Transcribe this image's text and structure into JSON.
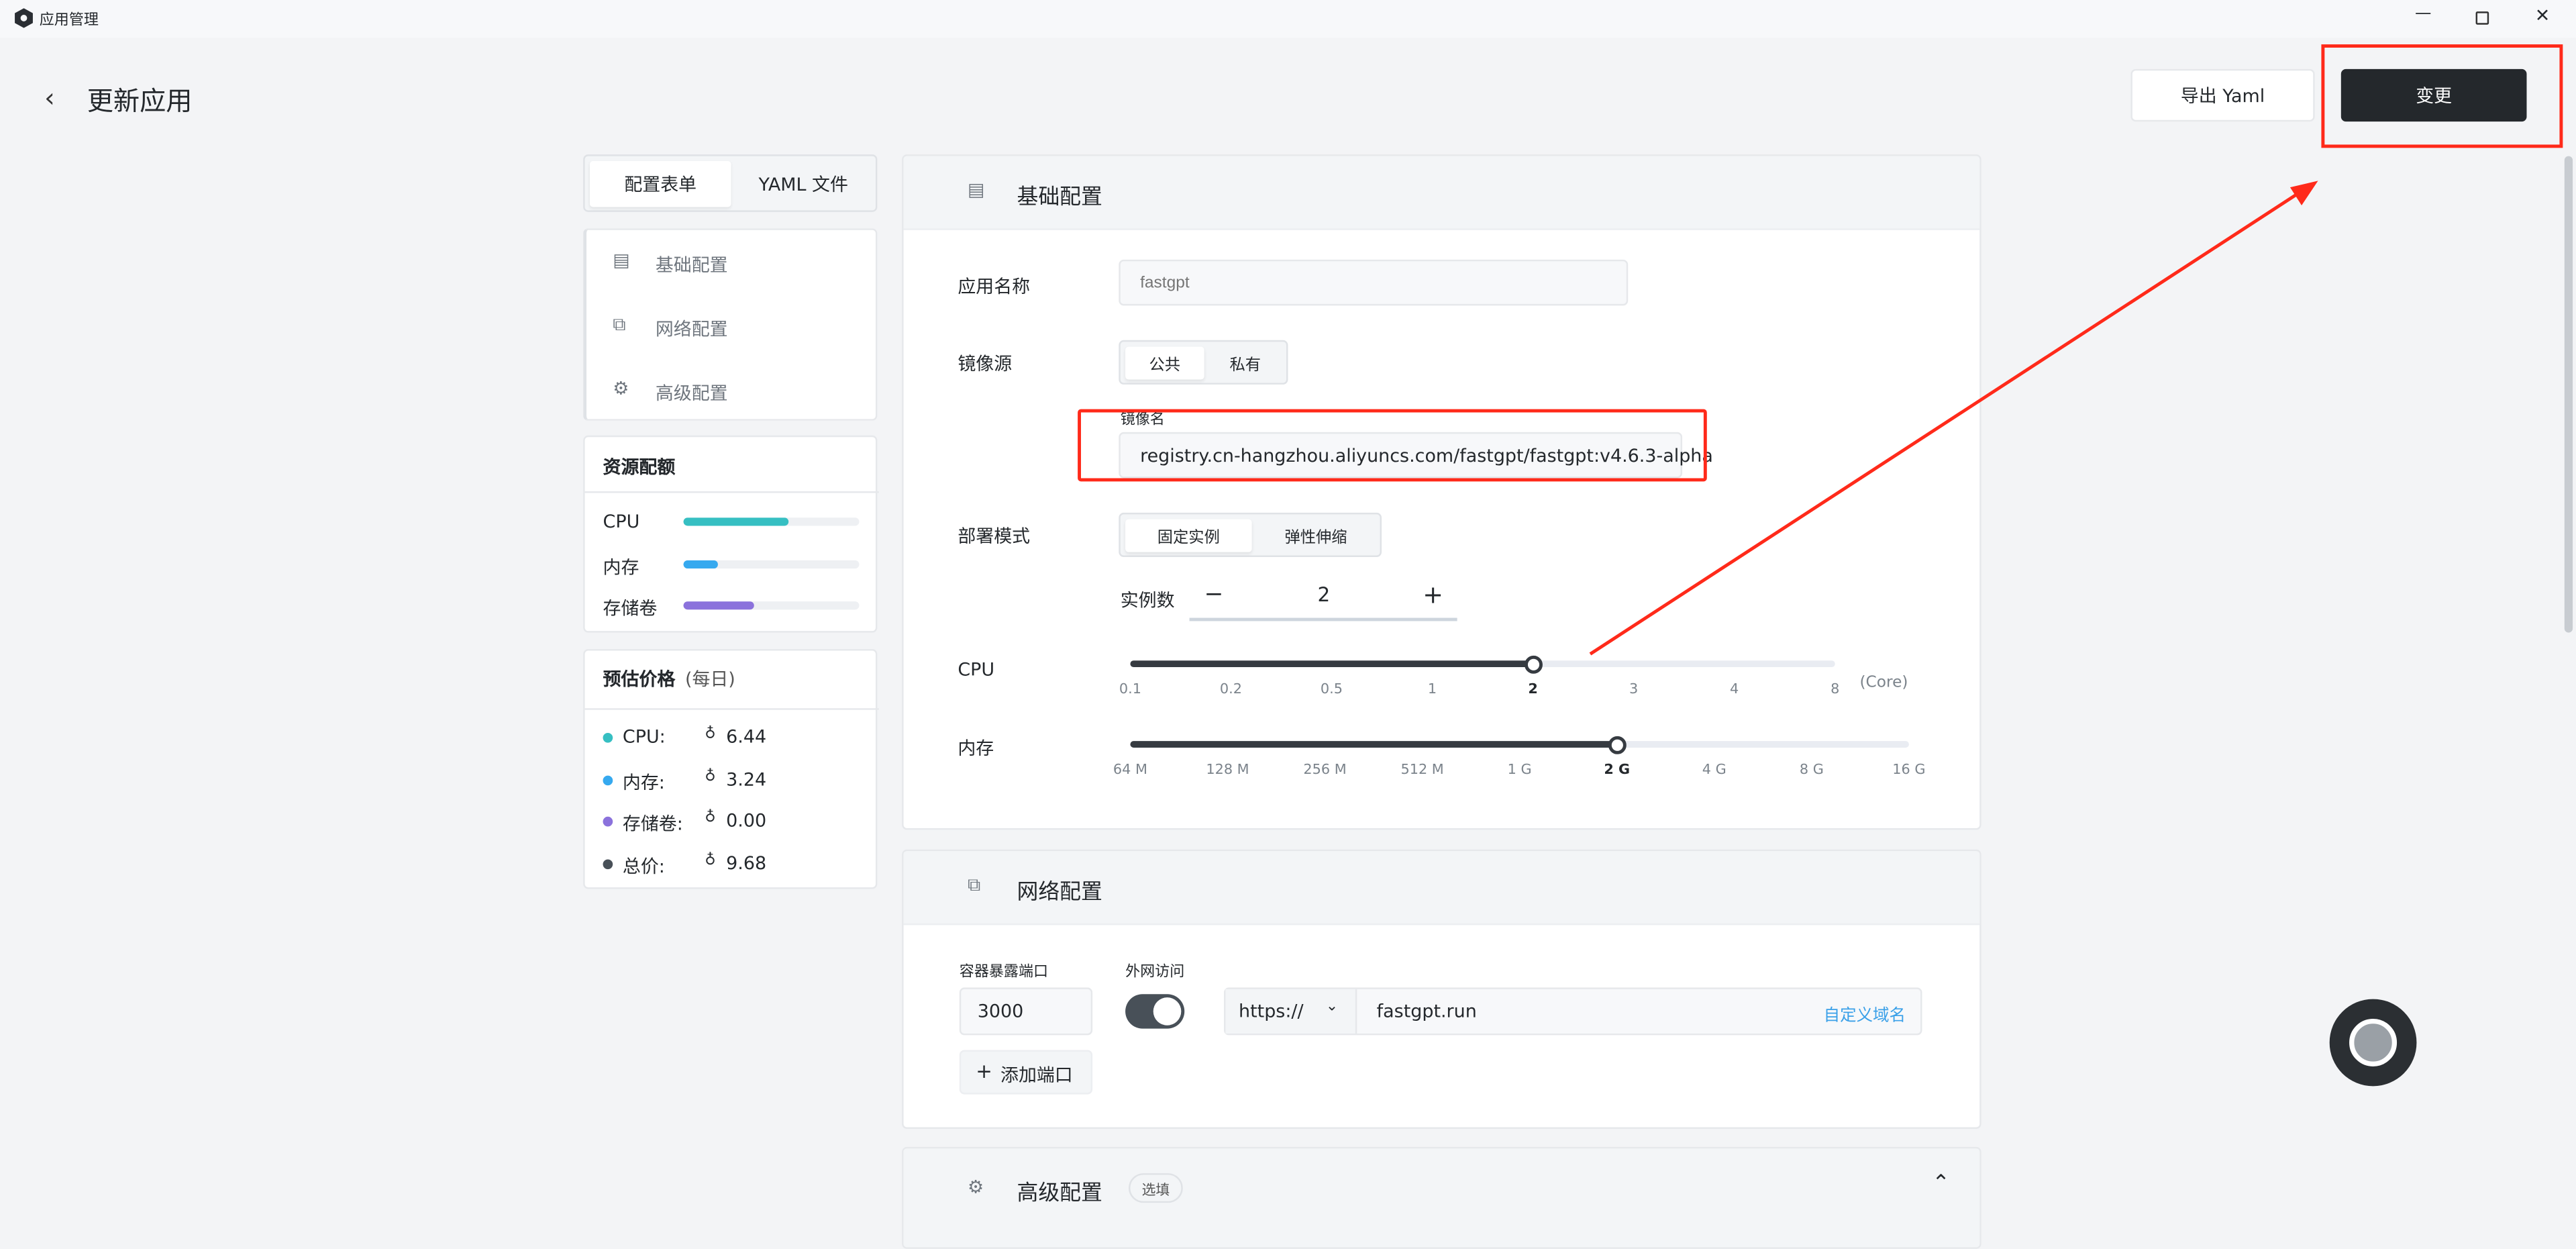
{
  "window": {
    "title": "应用管理",
    "controls": [
      "minimize-icon",
      "maximize-icon",
      "close-icon"
    ]
  },
  "header": {
    "title": "更新应用",
    "export_label": "导出 Yaml",
    "submit_label": "变更"
  },
  "tabs": [
    {
      "label": "配置表单",
      "active": true
    },
    {
      "label": "YAML 文件",
      "active": false
    }
  ],
  "nav": [
    {
      "label": "基础配置",
      "icon": "document-icon"
    },
    {
      "label": "网络配置",
      "icon": "network-icon"
    },
    {
      "label": "高级配置",
      "icon": "gear-icon"
    }
  ],
  "resources": {
    "title": "资源配额",
    "items": [
      {
        "label": "CPU",
        "percent": 60,
        "color": "#36bfc2"
      },
      {
        "label": "内存",
        "percent": 20,
        "color": "#36a9ef"
      },
      {
        "label": "存储卷",
        "percent": 40,
        "color": "#8b72dc"
      }
    ]
  },
  "price": {
    "title": "预估价格",
    "period": "(每日)",
    "items": [
      {
        "label": "CPU:",
        "value": "6.44",
        "color": "#36bfc2"
      },
      {
        "label": "内存:",
        "value": "3.24",
        "color": "#36a9ef"
      },
      {
        "label": "存储卷:",
        "value": "0.00",
        "color": "#8b72dc"
      },
      {
        "label": "总价:",
        "value": "9.68",
        "color": "#485058"
      }
    ]
  },
  "basic": {
    "title": "基础配置",
    "app_name_label": "应用名称",
    "app_name_placeholder": "fastgpt",
    "image_source_label": "镜像源",
    "image_source_options": [
      "公共",
      "私有"
    ],
    "image_source_selected": "公共",
    "image_name_label": "镜像名",
    "image_name_value": "registry.cn-hangzhou.aliyuncs.com/fastgpt/fastgpt:v4.6.3-alpha",
    "deploy_mode_label": "部署模式",
    "deploy_mode_options": [
      "固定实例",
      "弹性伸缩"
    ],
    "deploy_mode_selected": "固定实例",
    "replicas_label": "实例数",
    "replicas_value": "2",
    "cpu": {
      "label": "CPU",
      "unit": "(Core)",
      "ticks": [
        "0.1",
        "0.2",
        "0.5",
        "1",
        "2",
        "3",
        "4",
        "8"
      ],
      "selected": "2"
    },
    "memory": {
      "label": "内存",
      "ticks": [
        "64 M",
        "128 M",
        "256 M",
        "512 M",
        "1 G",
        "2 G",
        "4 G",
        "8 G",
        "16 G"
      ],
      "selected": "2 G"
    }
  },
  "network": {
    "title": "网络配置",
    "port_label": "容器暴露端口",
    "port_value": "3000",
    "public_label": "外网访问",
    "public_enabled": true,
    "protocol": "https://",
    "domain": "fastgpt.run",
    "custom_domain_label": "自定义域名",
    "add_port_label": "添加端口"
  },
  "advanced": {
    "title": "高级配置",
    "badge": "选填"
  },
  "colors": {
    "primary": "#24282c",
    "link": "#3aa0e8",
    "annotation": "#ff2a1a"
  }
}
